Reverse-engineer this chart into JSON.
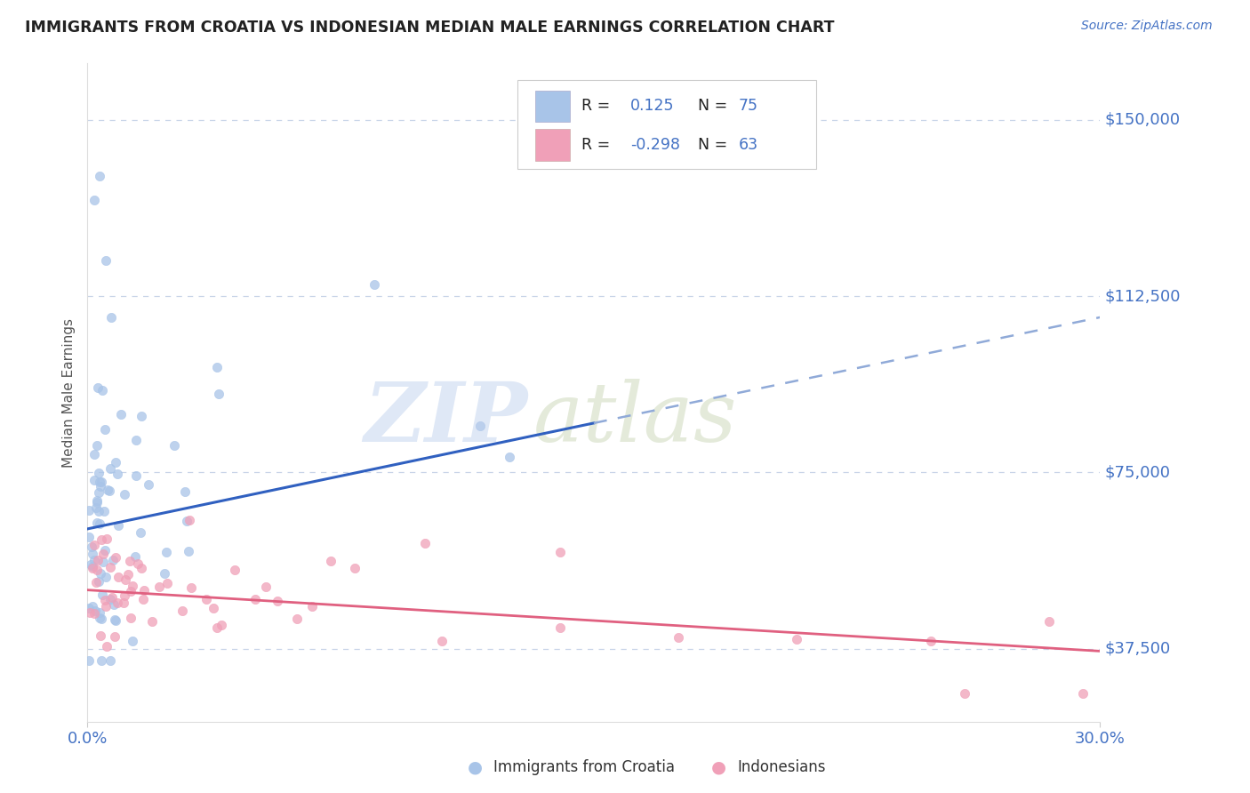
{
  "title": "IMMIGRANTS FROM CROATIA VS INDONESIAN MEDIAN MALE EARNINGS CORRELATION CHART",
  "source": "Source: ZipAtlas.com",
  "ylabel": "Median Male Earnings",
  "y_ticks": [
    37500,
    75000,
    112500,
    150000
  ],
  "y_tick_labels": [
    "$37,500",
    "$75,000",
    "$112,500",
    "$150,000"
  ],
  "x_min": 0.0,
  "x_max": 30.0,
  "y_min": 22000,
  "y_max": 162000,
  "croatia_R": 0.125,
  "croatia_N": 75,
  "indonesia_R": -0.298,
  "indonesia_N": 63,
  "croatia_color": "#a8c4e8",
  "croatia_trend_color": "#3060c0",
  "croatia_trend_dash_color": "#90aad8",
  "indonesia_color": "#f0a0b8",
  "indonesia_trend_color": "#e06080",
  "background_color": "#ffffff",
  "grid_color": "#c8d4e8",
  "label_color": "#4472c4",
  "title_color": "#222222",
  "croatia_trend_x0": 0.0,
  "croatia_trend_y0": 63000,
  "croatia_trend_x1": 30.0,
  "croatia_trend_y1": 108000,
  "croatia_solid_end_x": 15.0,
  "indonesia_trend_x0": 0.0,
  "indonesia_trend_y0": 50000,
  "indonesia_trend_x1": 30.0,
  "indonesia_trend_y1": 37000
}
